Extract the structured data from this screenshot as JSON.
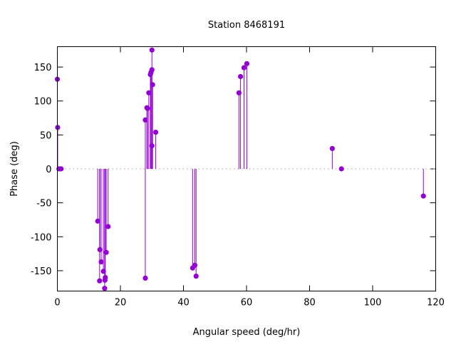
{
  "chart_data": {
    "type": "impulse-scatter",
    "title": "Station 8468191",
    "xlabel": "Angular speed (deg/hr)",
    "ylabel": "Phase (deg)",
    "xlim": [
      0,
      120
    ],
    "ylim": [
      -180,
      180
    ],
    "xticks": [
      0,
      20,
      40,
      60,
      80,
      100,
      120
    ],
    "yticks": [
      -150,
      -100,
      -50,
      0,
      50,
      100,
      150
    ],
    "zero_line": "dotted",
    "grid": false,
    "color": "#9400d3",
    "points": [
      {
        "x": 0.0,
        "y": 132
      },
      {
        "x": 0.1,
        "y": 61
      },
      {
        "x": 0.5,
        "y": 0
      },
      {
        "x": 1.2,
        "y": 0
      },
      {
        "x": 12.8,
        "y": -77
      },
      {
        "x": 13.5,
        "y": -119
      },
      {
        "x": 13.9,
        "y": -137
      },
      {
        "x": 13.4,
        "y": -165
      },
      {
        "x": 14.6,
        "y": -151
      },
      {
        "x": 15.2,
        "y": -160
      },
      {
        "x": 15.1,
        "y": -164
      },
      {
        "x": 15.0,
        "y": -176
      },
      {
        "x": 15.5,
        "y": -123
      },
      {
        "x": 16.1,
        "y": -85
      },
      {
        "x": 27.9,
        "y": -161
      },
      {
        "x": 27.9,
        "y": 72
      },
      {
        "x": 28.4,
        "y": 90
      },
      {
        "x": 28.6,
        "y": 89
      },
      {
        "x": 29.0,
        "y": 112
      },
      {
        "x": 29.5,
        "y": 139
      },
      {
        "x": 29.7,
        "y": 142
      },
      {
        "x": 30.0,
        "y": 146
      },
      {
        "x": 30.0,
        "y": 175
      },
      {
        "x": 30.2,
        "y": 124
      },
      {
        "x": 30.0,
        "y": 34
      },
      {
        "x": 31.2,
        "y": 54
      },
      {
        "x": 42.9,
        "y": -146
      },
      {
        "x": 43.6,
        "y": -142
      },
      {
        "x": 44.0,
        "y": -158
      },
      {
        "x": 57.6,
        "y": 112
      },
      {
        "x": 58.1,
        "y": 136
      },
      {
        "x": 59.2,
        "y": 149
      },
      {
        "x": 60.1,
        "y": 155
      },
      {
        "x": 87.2,
        "y": 30
      },
      {
        "x": 90.1,
        "y": 0
      },
      {
        "x": 116.1,
        "y": -40
      }
    ]
  }
}
